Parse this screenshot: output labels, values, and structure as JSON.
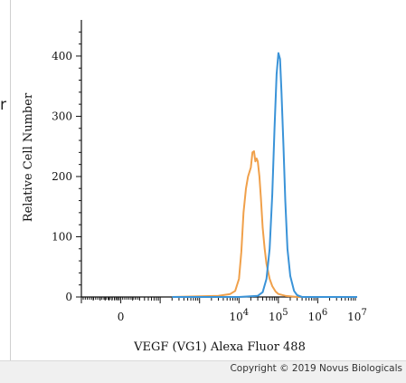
{
  "page": {
    "stray_text": "r",
    "copyright": "Copyright © 2019 Novus Biologicals"
  },
  "chart_data": {
    "type": "line",
    "title": "",
    "xlabel": "VEGF (VG1) Alexa Fluor 488",
    "ylabel": "Relative Cell Number",
    "x_scale": "log",
    "xlim": [
      1,
      10000000
    ],
    "ylim": [
      0,
      460
    ],
    "x_ticks": [
      {
        "pos": 10,
        "base": "0",
        "exp": ""
      },
      {
        "pos": 10000,
        "base": "10",
        "exp": "4"
      },
      {
        "pos": 100000,
        "base": "10",
        "exp": "5"
      },
      {
        "pos": 1000000,
        "base": "10",
        "exp": "6"
      },
      {
        "pos": 10000000,
        "base": "10",
        "exp": "7"
      }
    ],
    "y_ticks": [
      0,
      100,
      200,
      300,
      400
    ],
    "grid": false,
    "series": [
      {
        "color": "#f0a04a",
        "x": [
          200,
          1000,
          3000,
          6000,
          8000,
          10000,
          11500,
          13000,
          15000,
          17000,
          20000,
          22000,
          24000,
          26000,
          28000,
          30000,
          33000,
          36000,
          40000,
          45000,
          50000,
          60000,
          70000,
          85000,
          100000,
          150000,
          300000,
          10000000
        ],
        "y": [
          0,
          1,
          2,
          5,
          10,
          30,
          75,
          140,
          180,
          200,
          215,
          240,
          242,
          225,
          230,
          225,
          200,
          165,
          115,
          80,
          55,
          30,
          18,
          9,
          5,
          2,
          0,
          0
        ]
      },
      {
        "color": "#3a93d8",
        "x": [
          200,
          10000,
          30000,
          40000,
          50000,
          60000,
          70000,
          80000,
          90000,
          100000,
          110000,
          120000,
          135000,
          150000,
          170000,
          200000,
          250000,
          300000,
          400000,
          10000000
        ],
        "y": [
          0,
          0,
          2,
          8,
          30,
          80,
          170,
          280,
          370,
          405,
          395,
          340,
          250,
          160,
          80,
          35,
          10,
          3,
          0,
          0
        ]
      }
    ]
  }
}
